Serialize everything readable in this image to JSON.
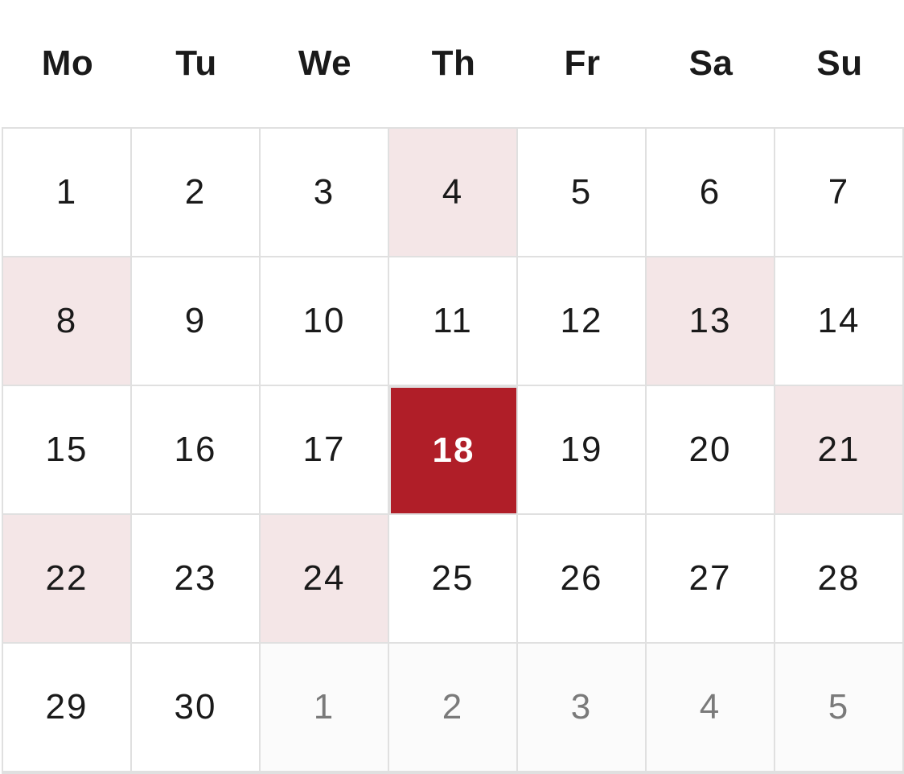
{
  "calendar": {
    "weekdays": [
      "Mo",
      "Tu",
      "We",
      "Th",
      "Fr",
      "Sa",
      "Su"
    ],
    "colors": {
      "selected_bg": "#b01e28",
      "highlight_bg": "#f4e6e7",
      "outside_text": "#7a7a7a",
      "grid_line": "#e0e0e0"
    },
    "days": [
      {
        "label": "1",
        "state": "normal"
      },
      {
        "label": "2",
        "state": "normal"
      },
      {
        "label": "3",
        "state": "normal"
      },
      {
        "label": "4",
        "state": "highlight"
      },
      {
        "label": "5",
        "state": "normal"
      },
      {
        "label": "6",
        "state": "normal"
      },
      {
        "label": "7",
        "state": "normal"
      },
      {
        "label": "8",
        "state": "highlight"
      },
      {
        "label": "9",
        "state": "normal"
      },
      {
        "label": "10",
        "state": "normal"
      },
      {
        "label": "11",
        "state": "normal"
      },
      {
        "label": "12",
        "state": "normal"
      },
      {
        "label": "13",
        "state": "highlight"
      },
      {
        "label": "14",
        "state": "normal"
      },
      {
        "label": "15",
        "state": "normal"
      },
      {
        "label": "16",
        "state": "normal"
      },
      {
        "label": "17",
        "state": "normal"
      },
      {
        "label": "18",
        "state": "selected"
      },
      {
        "label": "19",
        "state": "normal"
      },
      {
        "label": "20",
        "state": "normal"
      },
      {
        "label": "21",
        "state": "highlight"
      },
      {
        "label": "22",
        "state": "highlight"
      },
      {
        "label": "23",
        "state": "normal"
      },
      {
        "label": "24",
        "state": "highlight"
      },
      {
        "label": "25",
        "state": "normal"
      },
      {
        "label": "26",
        "state": "normal"
      },
      {
        "label": "27",
        "state": "normal"
      },
      {
        "label": "28",
        "state": "normal"
      },
      {
        "label": "29",
        "state": "normal"
      },
      {
        "label": "30",
        "state": "normal"
      },
      {
        "label": "1",
        "state": "outside"
      },
      {
        "label": "2",
        "state": "outside"
      },
      {
        "label": "3",
        "state": "outside"
      },
      {
        "label": "4",
        "state": "outside"
      },
      {
        "label": "5",
        "state": "outside"
      }
    ]
  }
}
